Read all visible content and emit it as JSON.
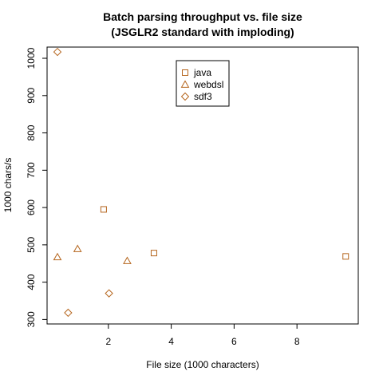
{
  "chart_data": {
    "type": "scatter",
    "title_line1": "Batch parsing throughput vs. file size",
    "title_line2": "(JSGLR2 standard with imploding)",
    "xlabel": "File size (1000 characters)",
    "ylabel": "1000 chars/s",
    "xlim": [
      0.05,
      9.95
    ],
    "ylim": [
      288,
      1030
    ],
    "xticks": [
      2,
      4,
      6,
      8
    ],
    "yticks": [
      300,
      400,
      500,
      600,
      700,
      800,
      900,
      1000
    ],
    "grid": false,
    "legend_position": "top-center",
    "marker_color": "#b5651d",
    "series": [
      {
        "name": "java",
        "marker": "square",
        "points": [
          {
            "x": 1.85,
            "y": 595
          },
          {
            "x": 3.45,
            "y": 478
          },
          {
            "x": 9.55,
            "y": 469
          }
        ]
      },
      {
        "name": "webdsl",
        "marker": "triangle",
        "points": [
          {
            "x": 0.38,
            "y": 467
          },
          {
            "x": 1.02,
            "y": 489
          },
          {
            "x": 2.6,
            "y": 457
          }
        ]
      },
      {
        "name": "sdf3",
        "marker": "diamond",
        "points": [
          {
            "x": 0.38,
            "y": 1017
          },
          {
            "x": 0.72,
            "y": 318
          },
          {
            "x": 2.02,
            "y": 370
          }
        ]
      }
    ]
  }
}
